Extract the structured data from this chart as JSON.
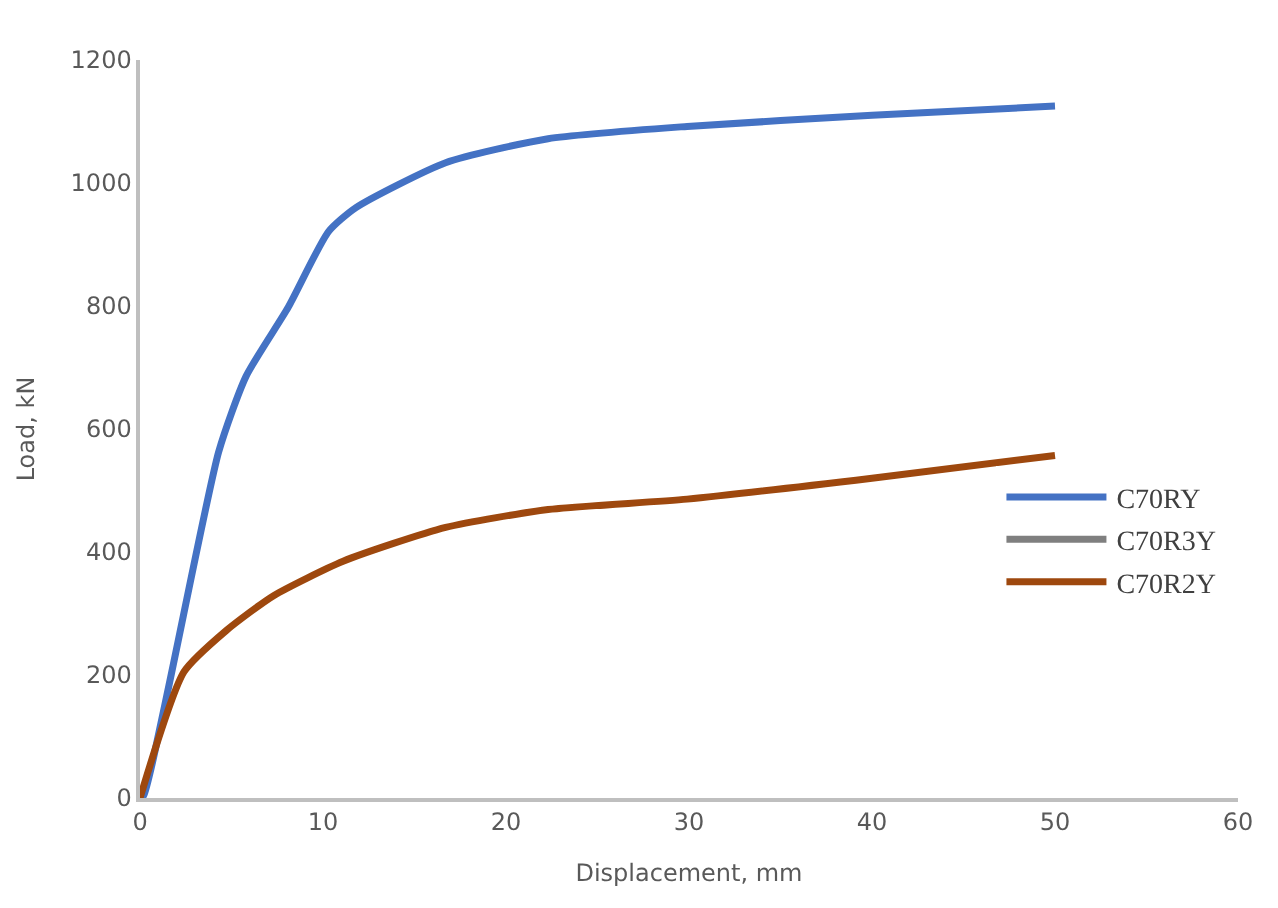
{
  "chart_data": {
    "type": "line",
    "xlabel": "Displacement, mm",
    "ylabel": "Load, kN",
    "xlim": [
      0,
      60
    ],
    "xticks": [
      0,
      10,
      20,
      30,
      40,
      50,
      60
    ],
    "ylim": [
      0,
      1200
    ],
    "yticks": [
      0,
      200,
      400,
      600,
      800,
      1000,
      1200
    ],
    "legend": "right",
    "marker": "none",
    "line_style": "solid",
    "series": [
      {
        "name": "C70RY",
        "color": "#4472c4",
        "x": [
          0,
          0.2,
          4.3,
          5.8,
          8.1,
          10.3,
          11.8,
          16.7,
          22.3,
          29.9,
          40,
          50
        ],
        "values": [
          0,
          4,
          563,
          686,
          798,
          921,
          960,
          1033,
          1072,
          1092,
          1110,
          1125
        ]
      },
      {
        "name": "C70R3Y",
        "color": "#7f7f7f",
        "values": [
          null
        ]
      },
      {
        "name": "C70R2Y",
        "color": "#9e480e",
        "x": [
          0,
          2.4,
          4.7,
          7.3,
          11.1,
          16.7,
          22.3,
          29.9,
          40,
          50
        ],
        "values": [
          0,
          205,
          272,
          329,
          385,
          440,
          469,
          486,
          520,
          557
        ]
      }
    ]
  }
}
